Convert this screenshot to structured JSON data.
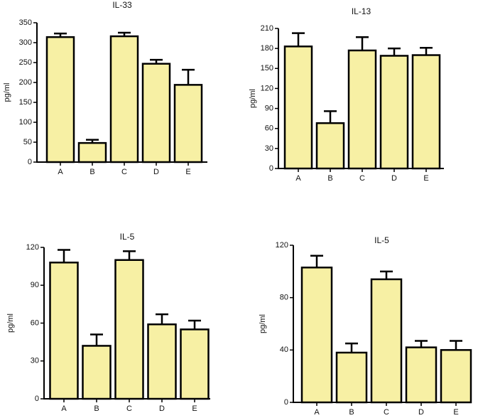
{
  "colors": {
    "bar_fill": "#f7f0a4",
    "stroke": "#000000"
  },
  "chart_data": [
    {
      "type": "bar",
      "title": "IL-33",
      "ylabel": "pg/ml",
      "categories": [
        "A",
        "B",
        "C",
        "D",
        "E"
      ],
      "values": [
        314,
        48,
        316,
        247,
        194
      ],
      "errors": [
        9,
        8,
        9,
        10,
        38
      ],
      "ylim": [
        0,
        350
      ],
      "yticks": [
        0,
        50,
        100,
        150,
        200,
        250,
        300,
        350
      ]
    },
    {
      "type": "bar",
      "title": "IL-13",
      "ylabel": "pg/ml",
      "categories": [
        "A",
        "B",
        "C",
        "D",
        "E"
      ],
      "values": [
        183,
        68,
        177,
        169,
        170
      ],
      "errors": [
        20,
        18,
        20,
        11,
        11
      ],
      "ylim": [
        0,
        210
      ],
      "yticks": [
        0,
        30,
        60,
        90,
        120,
        150,
        180,
        210
      ]
    },
    {
      "type": "bar",
      "title": "IL-5",
      "ylabel": "pg/ml",
      "categories": [
        "A",
        "B",
        "C",
        "D",
        "E"
      ],
      "values": [
        108,
        42,
        110,
        59,
        55
      ],
      "errors": [
        10,
        9,
        7,
        8,
        7
      ],
      "ylim": [
        0,
        120
      ],
      "yticks": [
        0,
        30,
        60,
        90,
        120
      ]
    },
    {
      "type": "bar",
      "title": "IL-5",
      "ylabel": "pg/ml",
      "categories": [
        "A",
        "B",
        "C",
        "D",
        "E"
      ],
      "values": [
        103,
        38,
        94,
        42,
        40
      ],
      "errors": [
        9,
        7,
        6,
        5,
        7
      ],
      "ylim": [
        0,
        120
      ],
      "yticks": [
        0,
        40,
        80,
        120
      ]
    }
  ]
}
